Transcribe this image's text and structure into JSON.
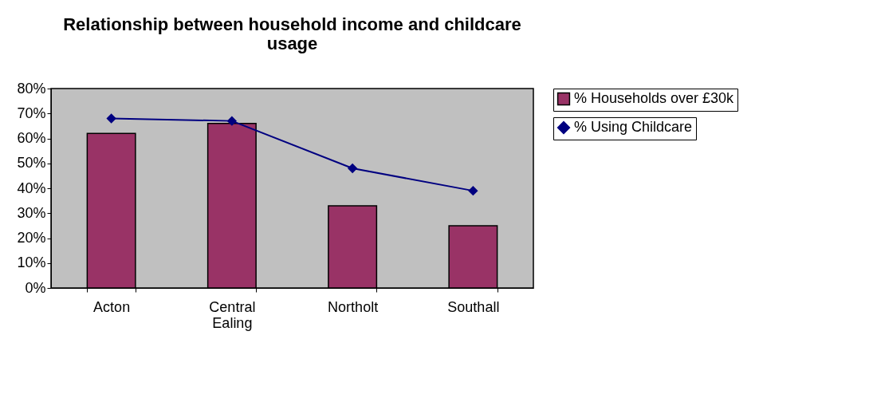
{
  "chart_data": {
    "type": "bar",
    "title": "Relationship between household income and childcare usage",
    "categories": [
      "Acton",
      "Central Ealing",
      "Northolt",
      "Southall"
    ],
    "series": [
      {
        "name": "% Households over £30k",
        "color": "#993366",
        "values": [
          62,
          66,
          33,
          25
        ]
      },
      {
        "name": "% Using Childcare",
        "type": "line",
        "color": "#000080",
        "values": [
          68,
          67,
          48,
          39
        ]
      }
    ],
    "ylim": [
      0,
      80
    ],
    "yticks": [
      {
        "value": 0,
        "label": "0%"
      },
      {
        "value": 10,
        "label": "10%"
      },
      {
        "value": 20,
        "label": "20%"
      },
      {
        "value": 30,
        "label": "30%"
      },
      {
        "value": 40,
        "label": "40%"
      },
      {
        "value": 50,
        "label": "50%"
      },
      {
        "value": 60,
        "label": "60%"
      },
      {
        "value": 70,
        "label": "70%"
      },
      {
        "value": 80,
        "label": "80%"
      }
    ],
    "grid": false,
    "legend": "right",
    "marker": "diamond",
    "line_style": "solid"
  }
}
